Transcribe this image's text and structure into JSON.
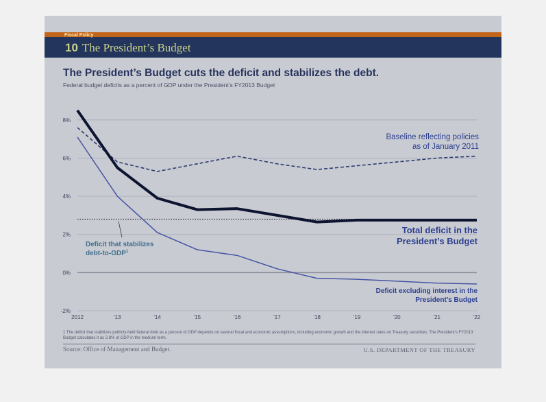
{
  "header": {
    "section_label": "Fiscal Policy",
    "section_number": "10",
    "section_title": "The President’s Budget"
  },
  "headline": "The President’s Budget cuts the deficit and stabilizes the debt.",
  "subtitle": "Federal budget deficits as a percent of GDP under the President’s FY2013 Budget",
  "footnote": "1 The deficit that stabilizes publicly-held federal debt as a percent of GDP depends on several fiscal and economic assumptions, including economic growth and the interest rates on Treasury securities. The President’s FY2013 Budget calculates it as 2.8% of GDP in the medium term.",
  "source": "Source: Office of Management and Budget.",
  "agency": "U.S. DEPARTMENT OF THE TREASURY",
  "colors": {
    "baseline": "#2b3a6e",
    "total": "#0c1430",
    "excluding_interest": "#4555a3",
    "stabilizing": "#2a2a3a",
    "label_blue": "#2c3f8f",
    "label_teal": "#3f6f8c"
  },
  "chart_data": {
    "type": "line",
    "x": [
      "2012",
      "'13",
      "'14",
      "'15",
      "'16",
      "'17",
      "'18",
      "'19",
      "'20",
      "'21",
      "'22"
    ],
    "ylim": [
      -2,
      9
    ],
    "yticks": [
      "-2%",
      "0%",
      "2%",
      "4%",
      "6%",
      "8%"
    ],
    "ytick_values": [
      -2,
      0,
      2,
      4,
      6,
      8
    ],
    "grid": true,
    "series": [
      {
        "key": "baseline",
        "label_lines": [
          "Baseline reflecting policies",
          "as of January 2011"
        ],
        "style": "dashed",
        "values": [
          7.6,
          5.8,
          5.3,
          5.7,
          6.1,
          5.7,
          5.4,
          5.6,
          5.8,
          6.0,
          6.1
        ]
      },
      {
        "key": "total",
        "label_lines": [
          "Total deficit in the",
          "President’s Budget"
        ],
        "style": "solid-thick",
        "values": [
          8.5,
          5.5,
          3.9,
          3.3,
          3.35,
          3.0,
          2.65,
          2.75,
          2.75,
          2.75,
          2.75
        ]
      },
      {
        "key": "excluding_interest",
        "label_lines": [
          "Deficit excluding interest in the",
          "President’s Budget"
        ],
        "style": "solid",
        "values": [
          7.1,
          4.0,
          2.1,
          1.2,
          0.9,
          0.2,
          -0.3,
          -0.35,
          -0.45,
          -0.55,
          -0.6
        ]
      }
    ],
    "reference_line": {
      "value": 2.8,
      "label_lines": [
        "Deficit that stabilizes",
        "debt-to-GDP",
        "1"
      ]
    }
  }
}
